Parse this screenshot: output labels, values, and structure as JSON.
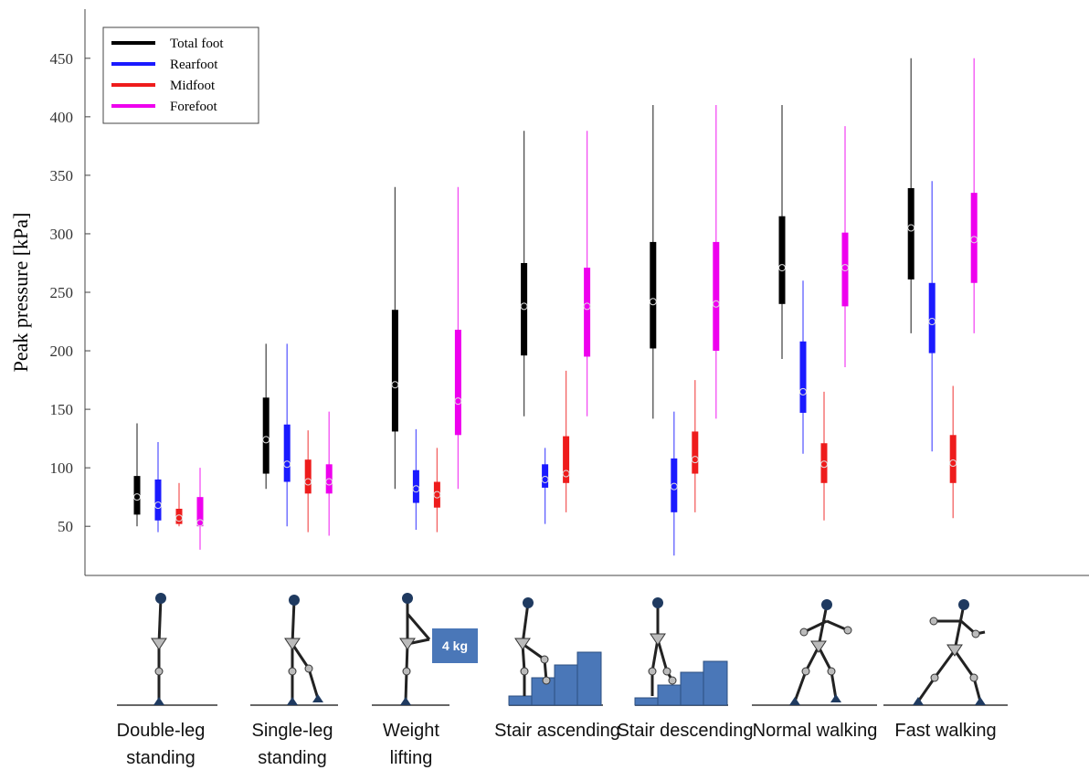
{
  "chart_data": {
    "type": "box",
    "ylabel": "Peak pressure [kPa]",
    "annotation": "4 kg",
    "categories": [
      "Double-leg standing",
      "Single-leg standing",
      "Weight lifting",
      "Stair ascending",
      "Stair descending",
      "Normal walking",
      "Fast walking"
    ],
    "ylim": [
      8,
      492
    ],
    "yticks": [
      50,
      100,
      150,
      200,
      250,
      300,
      350,
      400,
      450
    ],
    "legend": "upper left",
    "series": [
      {
        "name": "Total foot",
        "color": "#000000",
        "min": [
          50,
          82,
          82,
          144,
          142,
          193,
          215
        ],
        "q1": [
          60,
          95,
          131,
          196,
          202,
          240,
          261
        ],
        "median": [
          75,
          124,
          171,
          238,
          242,
          271,
          305
        ],
        "q3": [
          93,
          160,
          235,
          275,
          293,
          315,
          339
        ],
        "max": [
          138,
          206,
          340,
          388,
          410,
          410,
          450
        ]
      },
      {
        "name": "Rearfoot",
        "color": "#1a1aff",
        "min": [
          45,
          50,
          47,
          52,
          25,
          112,
          114
        ],
        "q1": [
          55,
          88,
          70,
          83,
          62,
          147,
          198
        ],
        "median": [
          68,
          103,
          82,
          90,
          84,
          165,
          225
        ],
        "q3": [
          90,
          137,
          98,
          103,
          108,
          208,
          258
        ],
        "max": [
          122,
          206,
          133,
          117,
          148,
          260,
          345
        ]
      },
      {
        "name": "Midfoot",
        "color": "#ee1c1c",
        "min": [
          50,
          45,
          45,
          62,
          62,
          55,
          57
        ],
        "q1": [
          52,
          78,
          66,
          87,
          95,
          87,
          87
        ],
        "median": [
          57,
          88,
          77,
          95,
          107,
          103,
          104
        ],
        "q3": [
          65,
          107,
          88,
          127,
          131,
          121,
          128
        ],
        "max": [
          87,
          132,
          117,
          183,
          175,
          165,
          170
        ]
      },
      {
        "name": "Forefoot",
        "color": "#ee00ee",
        "min": [
          30,
          42,
          82,
          144,
          142,
          186,
          215
        ],
        "q1": [
          50,
          78,
          128,
          195,
          200,
          238,
          258
        ],
        "median": [
          53,
          88,
          157,
          238,
          240,
          271,
          295
        ],
        "q3": [
          75,
          103,
          218,
          271,
          293,
          301,
          335
        ],
        "max": [
          100,
          148,
          340,
          388,
          410,
          392,
          450
        ]
      }
    ]
  }
}
